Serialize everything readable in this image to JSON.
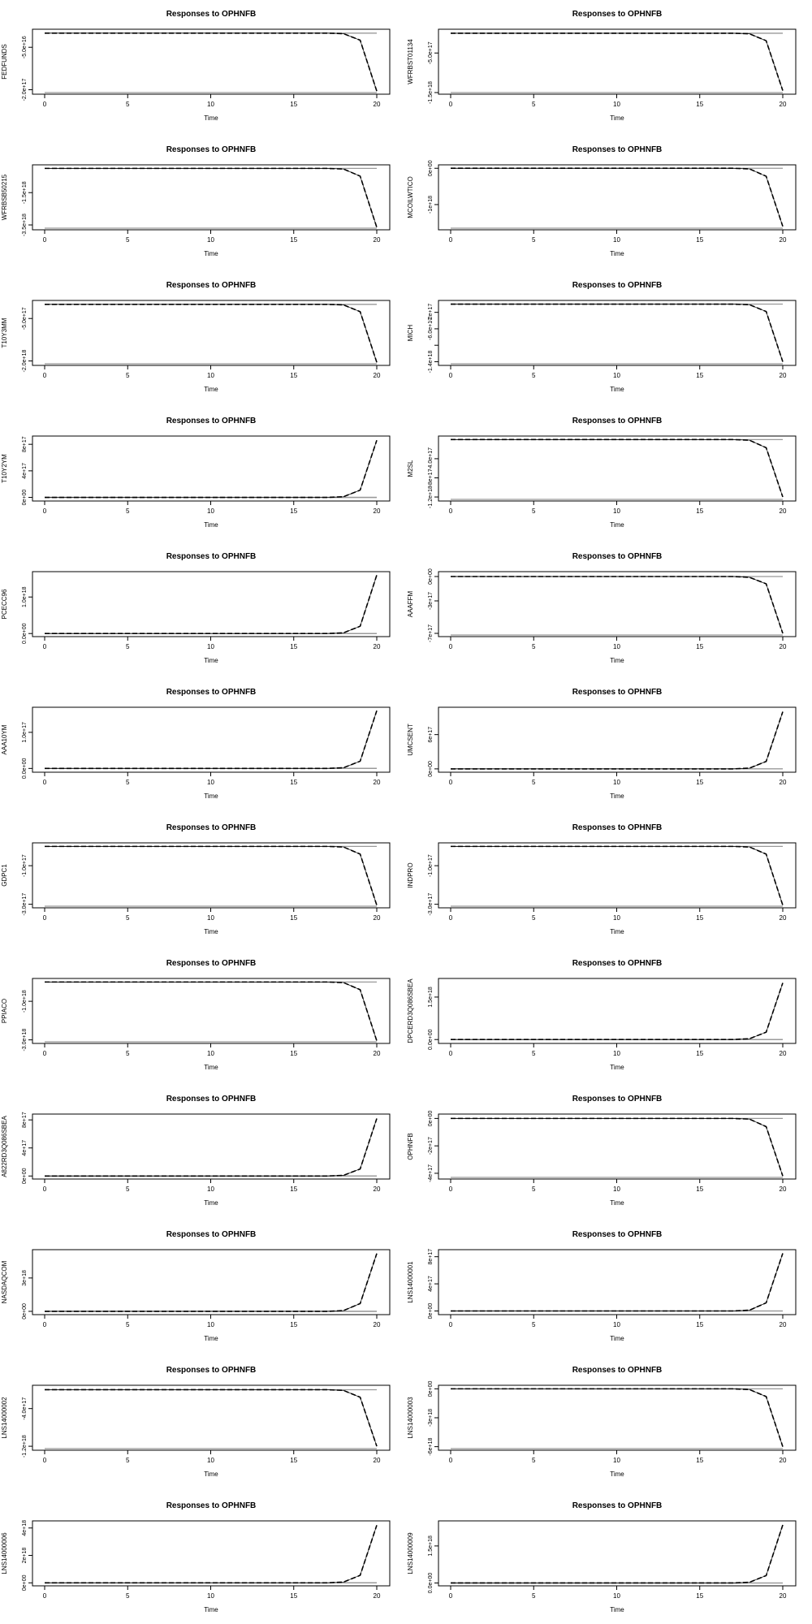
{
  "chart_data": [
    {
      "type": "line",
      "title": "Responses to OPHNFB",
      "xlabel": "Time",
      "ylabel": "FEDFUNDS",
      "xticks": [
        0,
        5,
        10,
        15,
        20
      ],
      "yticks": [
        {
          "v": -5e+16,
          "label": "-5.0e+16"
        },
        {
          "v": -2e+17,
          "label": "-2.0e+17"
        }
      ],
      "ylim": [
        -2.1e+17,
        8000000000000000.0
      ],
      "upper": 0,
      "lower": -2.1e+17,
      "x": [
        0,
        17,
        18,
        19,
        20
      ],
      "y": [
        0,
        0,
        -2000000000000000.0,
        -2.5e+16,
        -2.05e+17
      ]
    },
    {
      "type": "line",
      "title": "Responses to OPHNFB",
      "xlabel": "Time",
      "ylabel": "WFRBST01134",
      "xticks": [
        0,
        5,
        10,
        15,
        20
      ],
      "yticks": [
        {
          "v": -5e+17,
          "label": "-5.0e+17"
        },
        {
          "v": -1.5e+18,
          "label": "-1.5e+18"
        }
      ],
      "ylim": [
        -1.5e+18,
        6e+16
      ],
      "upper": 0,
      "lower": -1.5e+18,
      "x": [
        0,
        17,
        18,
        19,
        20
      ],
      "y": [
        0,
        0,
        -1.5e+16,
        -1.9e+17,
        -1.45e+18
      ]
    },
    {
      "type": "line",
      "title": "Responses to OPHNFB",
      "xlabel": "Time",
      "ylabel": "WFRBSB50215",
      "xticks": [
        0,
        5,
        10,
        15,
        20
      ],
      "yticks": [
        {
          "v": -1.5e+18,
          "label": "-1.5e+18"
        },
        {
          "v": -3.5e+18,
          "label": "-3.5e+18"
        }
      ],
      "ylim": [
        -3.7e+18,
        1.2e+17
      ],
      "upper": 0,
      "lower": -3.7e+18,
      "x": [
        0,
        17,
        18,
        19,
        20
      ],
      "y": [
        0,
        0,
        -4e+16,
        -4.8e+17,
        -3.65e+18
      ]
    },
    {
      "type": "line",
      "title": "Responses to OPHNFB",
      "xlabel": "Time",
      "ylabel": "MCOILWTICO",
      "xticks": [
        0,
        5,
        10,
        15,
        20
      ],
      "yticks": [
        {
          "v": 0,
          "label": "0e+00"
        },
        {
          "v": -1e+18,
          "label": "-1e+18"
        }
      ],
      "ylim": [
        -1.65e+18,
        5e+16
      ],
      "upper": 0,
      "lower": -1.65e+18,
      "x": [
        0,
        17,
        18,
        19,
        20
      ],
      "y": [
        0,
        0,
        -1.8e+16,
        -2.2e+17,
        -1.6e+18
      ]
    },
    {
      "type": "line",
      "title": "Responses to OPHNFB",
      "xlabel": "Time",
      "ylabel": "T10Y3MM",
      "xticks": [
        0,
        5,
        10,
        15,
        20
      ],
      "yticks": [
        {
          "v": -5e+17,
          "label": "-5.0e+17"
        },
        {
          "v": -2e+18,
          "label": "-2.0e+18"
        }
      ],
      "ylim": [
        -2.1e+18,
        8e+16
      ],
      "upper": 0,
      "lower": -2.1e+18,
      "x": [
        0,
        17,
        18,
        19,
        20
      ],
      "y": [
        0,
        0,
        -2e+16,
        -2.6e+17,
        -2.05e+18
      ]
    },
    {
      "type": "line",
      "title": "Responses to OPHNFB",
      "xlabel": "Time",
      "ylabel": "MICH",
      "xticks": [
        0,
        5,
        10,
        15,
        20
      ],
      "yticks": [
        {
          "v": -2e+17,
          "label": "-2e+17"
        },
        {
          "v": -6e+17,
          "label": "-6.0e+17"
        },
        {
          "v": -1e+18,
          "label": ""
        },
        {
          "v": -1.4e+18,
          "label": "-1.4e+18"
        }
      ],
      "ylim": [
        -1.45e+18,
        5e+16
      ],
      "upper": 0,
      "lower": -1.45e+18,
      "x": [
        0,
        17,
        18,
        19,
        20
      ],
      "y": [
        0,
        0,
        -1.5e+16,
        -1.8e+17,
        -1.4e+18
      ]
    },
    {
      "type": "line",
      "title": "Responses to OPHNFB",
      "xlabel": "Time",
      "ylabel": "T10Y2YM",
      "xticks": [
        0,
        5,
        10,
        15,
        20
      ],
      "yticks": [
        {
          "v": 0,
          "label": "0e+00"
        },
        {
          "v": 4e+17,
          "label": "4e+17"
        },
        {
          "v": 8e+17,
          "label": "8e+17"
        }
      ],
      "ylim": [
        -3e+16,
        9e+17
      ],
      "upper": 0,
      "lower": 0,
      "x": [
        0,
        17,
        18,
        19,
        20
      ],
      "y": [
        0,
        0,
        1e+16,
        1.1e+17,
        8.6e+17
      ]
    },
    {
      "type": "line",
      "title": "Responses to OPHNFB",
      "xlabel": "Time",
      "ylabel": "M2SL",
      "xticks": [
        0,
        5,
        10,
        15,
        20
      ],
      "yticks": [
        {
          "v": -4e+17,
          "label": "-4.0e+17"
        },
        {
          "v": -8e+17,
          "label": "-8e+17"
        },
        {
          "v": -1.2e+18,
          "label": "-1.2e+18"
        }
      ],
      "ylim": [
        -1.25e+18,
        4e+16
      ],
      "upper": 0,
      "lower": -1.25e+18,
      "x": [
        0,
        17,
        18,
        19,
        20
      ],
      "y": [
        0,
        0,
        -1.4e+16,
        -1.7e+17,
        -1.2e+18
      ]
    },
    {
      "type": "line",
      "title": "Responses to OPHNFB",
      "xlabel": "Time",
      "ylabel": "PCECC96",
      "xticks": [
        0,
        5,
        10,
        15,
        20
      ],
      "yticks": [
        {
          "v": 0,
          "label": "0.0e+00"
        },
        {
          "v": 1e+18,
          "label": "1.0e+18"
        }
      ],
      "ylim": [
        -4e+16,
        1.65e+18
      ],
      "upper": 0,
      "lower": 0,
      "x": [
        0,
        17,
        18,
        19,
        20
      ],
      "y": [
        0,
        0,
        2e+16,
        2e+17,
        1.6e+18
      ]
    },
    {
      "type": "line",
      "title": "Responses to OPHNFB",
      "xlabel": "Time",
      "ylabel": "AAAFFM",
      "xticks": [
        0,
        5,
        10,
        15,
        20
      ],
      "yticks": [
        {
          "v": 0,
          "label": "0e+00"
        },
        {
          "v": -3e+17,
          "label": "-3e+17"
        },
        {
          "v": -7e+17,
          "label": "-7e+17"
        }
      ],
      "ylim": [
        -7.2e+17,
        4e+16
      ],
      "upper": 0,
      "lower": -7.2e+17,
      "x": [
        0,
        17,
        18,
        19,
        20
      ],
      "y": [
        0,
        0,
        -1e+16,
        -9e+16,
        -7e+17
      ]
    },
    {
      "type": "line",
      "title": "Responses to OPHNFB",
      "xlabel": "Time",
      "ylabel": "AAA10YM",
      "xticks": [
        0,
        5,
        10,
        15,
        20
      ],
      "yticks": [
        {
          "v": 0,
          "label": "0.0e+00"
        },
        {
          "v": 1e+17,
          "label": "1.0e+17"
        }
      ],
      "ylim": [
        -6000000000000000.0,
        1.65e+17
      ],
      "upper": 0,
      "lower": 0,
      "x": [
        0,
        17,
        18,
        19,
        20
      ],
      "y": [
        0,
        0,
        2000000000000000.0,
        2e+16,
        1.6e+17
      ]
    },
    {
      "type": "line",
      "title": "Responses to OPHNFB",
      "xlabel": "Time",
      "ylabel": "UMCSENT",
      "xticks": [
        0,
        5,
        10,
        15,
        20
      ],
      "yticks": [
        {
          "v": 0,
          "label": "0e+00"
        },
        {
          "v": 6e+17,
          "label": "6e+17"
        }
      ],
      "ylim": [
        -3e+16,
        1.05e+18
      ],
      "upper": 0,
      "lower": 0,
      "x": [
        0,
        17,
        18,
        19,
        20
      ],
      "y": [
        0,
        0,
        1.3e+16,
        1.3e+17,
        1e+18
      ]
    },
    {
      "type": "line",
      "title": "Responses to OPHNFB",
      "xlabel": "Time",
      "ylabel": "GDPC1",
      "xticks": [
        0,
        5,
        10,
        15,
        20
      ],
      "yticks": [
        {
          "v": -1e+17,
          "label": "-1.0e+17"
        },
        {
          "v": -3e+17,
          "label": "-3.0e+17"
        }
      ],
      "ylim": [
        -3.1e+17,
        1e+16
      ],
      "upper": 0,
      "lower": -3.1e+17,
      "x": [
        0,
        17,
        18,
        19,
        20
      ],
      "y": [
        0,
        0,
        -3000000000000000.0,
        -4e+16,
        -3.05e+17
      ]
    },
    {
      "type": "line",
      "title": "Responses to OPHNFB",
      "xlabel": "Time",
      "ylabel": "INDPRO",
      "xticks": [
        0,
        5,
        10,
        15,
        20
      ],
      "yticks": [
        {
          "v": -1e+17,
          "label": "-1.0e+17"
        },
        {
          "v": -3e+17,
          "label": "-3.0e+17"
        }
      ],
      "ylim": [
        -3.1e+17,
        1e+16
      ],
      "upper": 0,
      "lower": -3.1e+17,
      "x": [
        0,
        17,
        18,
        19,
        20
      ],
      "y": [
        0,
        0,
        -3000000000000000.0,
        -4e+16,
        -3.05e+17
      ]
    },
    {
      "type": "line",
      "title": "Responses to OPHNFB",
      "xlabel": "Time",
      "ylabel": "PPIACO",
      "xticks": [
        0,
        5,
        10,
        15,
        20
      ],
      "yticks": [
        {
          "v": -1e+18,
          "label": "-1.0e+18"
        },
        {
          "v": -3e+18,
          "label": "-3.0e+18"
        }
      ],
      "ylim": [
        -3.1e+18,
        1e+17
      ],
      "upper": 0,
      "lower": -3.1e+18,
      "x": [
        0,
        17,
        18,
        19,
        20
      ],
      "y": [
        0,
        0,
        -3e+16,
        -4e+17,
        -3.05e+18
      ]
    },
    {
      "type": "line",
      "title": "Responses to OPHNFB",
      "xlabel": "Time",
      "ylabel": "DPCERD3Q086SBEA",
      "xticks": [
        0,
        5,
        10,
        15,
        20
      ],
      "yticks": [
        {
          "v": 0,
          "label": "0.0e+00"
        },
        {
          "v": 1.5e+18,
          "label": "1.5e+18"
        }
      ],
      "ylim": [
        -8e+16,
        2.1e+18
      ],
      "upper": 0,
      "lower": 0,
      "x": [
        0,
        17,
        18,
        19,
        20
      ],
      "y": [
        0,
        0,
        3e+16,
        2.6e+17,
        2e+18
      ]
    },
    {
      "type": "line",
      "title": "Responses to OPHNFB",
      "xlabel": "Time",
      "ylabel": "A822RD3Q086SBEA",
      "xticks": [
        0,
        5,
        10,
        15,
        20
      ],
      "yticks": [
        {
          "v": 0,
          "label": "0e+00"
        },
        {
          "v": 4e+17,
          "label": "4e+17"
        },
        {
          "v": 8e+17,
          "label": "8e+17"
        }
      ],
      "ylim": [
        -2e+16,
        8.6e+17
      ],
      "upper": 0,
      "lower": 0,
      "x": [
        0,
        17,
        18,
        19,
        20
      ],
      "y": [
        0,
        0,
        1e+16,
        1e+17,
        8.2e+17
      ]
    },
    {
      "type": "line",
      "title": "Responses to OPHNFB",
      "xlabel": "Time",
      "ylabel": "OPHNFB",
      "xticks": [
        0,
        5,
        10,
        15,
        20
      ],
      "yticks": [
        {
          "v": 0,
          "label": "0e+00"
        },
        {
          "v": -2e+17,
          "label": "-2e+17"
        },
        {
          "v": -4e+17,
          "label": "-4e+17"
        }
      ],
      "ylim": [
        -4.3e+17,
        2e+16
      ],
      "upper": 0,
      "lower": -4.3e+17,
      "x": [
        0,
        17,
        18,
        19,
        20
      ],
      "y": [
        0,
        0,
        -5000000000000000.0,
        -6e+16,
        -4.2e+17
      ]
    },
    {
      "type": "line",
      "title": "Responses to OPHNFB",
      "xlabel": "Time",
      "ylabel": "NASDAQCOM",
      "xticks": [
        0,
        5,
        10,
        15,
        20
      ],
      "yticks": [
        {
          "v": 0,
          "label": "0e+00"
        },
        {
          "v": 3e+18,
          "label": "3e+18"
        }
      ],
      "ylim": [
        -1.5e+17,
        5.4e+18
      ],
      "upper": 0,
      "lower": 0,
      "x": [
        0,
        17,
        18,
        19,
        20
      ],
      "y": [
        0,
        0,
        7e+16,
        7e+17,
        5.2e+18
      ]
    },
    {
      "type": "line",
      "title": "Responses to OPHNFB",
      "xlabel": "Time",
      "ylabel": "LNS14000001",
      "xticks": [
        0,
        5,
        10,
        15,
        20
      ],
      "yticks": [
        {
          "v": 0,
          "label": "0e+00"
        },
        {
          "v": 4e+17,
          "label": "4e+17"
        },
        {
          "v": 8e+17,
          "label": "8e+17"
        }
      ],
      "ylim": [
        -3e+16,
        8.8e+17
      ],
      "upper": 0,
      "lower": 0,
      "x": [
        0,
        17,
        18,
        19,
        20
      ],
      "y": [
        0,
        0,
        1.2e+16,
        1.2e+17,
        8.5e+17
      ]
    },
    {
      "type": "line",
      "title": "Responses to OPHNFB",
      "xlabel": "Time",
      "ylabel": "LNS14000002",
      "xticks": [
        0,
        5,
        10,
        15,
        20
      ],
      "yticks": [
        {
          "v": -4e+17,
          "label": "-4.0e+17"
        },
        {
          "v": -1.2e+18,
          "label": "-1.2e+18"
        }
      ],
      "ylim": [
        -1.25e+18,
        6e+16
      ],
      "upper": 0,
      "lower": -1.25e+18,
      "x": [
        0,
        17,
        18,
        19,
        20
      ],
      "y": [
        0,
        0,
        -1.5e+16,
        -1.6e+17,
        -1.2e+18
      ]
    },
    {
      "type": "line",
      "title": "Responses to OPHNFB",
      "xlabel": "Time",
      "ylabel": "LNS14000003",
      "xticks": [
        0,
        5,
        10,
        15,
        20
      ],
      "yticks": [
        {
          "v": 0,
          "label": "0e+00"
        },
        {
          "v": -3e+18,
          "label": "-3e+18"
        },
        {
          "v": -6e+18,
          "label": "-6e+18"
        }
      ],
      "ylim": [
        -6.2e+18,
        2e+17
      ],
      "upper": 0,
      "lower": -6.2e+18,
      "x": [
        0,
        17,
        18,
        19,
        20
      ],
      "y": [
        0,
        0,
        -8e+16,
        -8e+17,
        -6e+18
      ]
    },
    {
      "type": "line",
      "title": "Responses to OPHNFB",
      "xlabel": "Time",
      "ylabel": "LNS14000006",
      "xticks": [
        0,
        5,
        10,
        15,
        20
      ],
      "yticks": [
        {
          "v": 0,
          "label": "0e+00"
        },
        {
          "v": 2e+18,
          "label": "2e+18"
        },
        {
          "v": 4e+18,
          "label": "4e+18"
        }
      ],
      "ylim": [
        -1e+17,
        4.4e+18
      ],
      "upper": 0,
      "lower": 0,
      "x": [
        0,
        17,
        18,
        19,
        20
      ],
      "y": [
        0,
        0,
        6e+16,
        5.5e+17,
        4.2e+18
      ]
    },
    {
      "type": "line",
      "title": "Responses to OPHNFB",
      "xlabel": "Time",
      "ylabel": "LNS14000009",
      "xticks": [
        0,
        5,
        10,
        15,
        20
      ],
      "yticks": [
        {
          "v": 0,
          "label": "0.0e+00"
        },
        {
          "v": 1.5e+18,
          "label": "1.5e+18"
        }
      ],
      "ylim": [
        -5e+16,
        2.45e+18
      ],
      "upper": 0,
      "lower": 0,
      "x": [
        0,
        17,
        18,
        19,
        20
      ],
      "y": [
        0,
        0,
        3e+16,
        3e+17,
        2.35e+18
      ]
    }
  ]
}
